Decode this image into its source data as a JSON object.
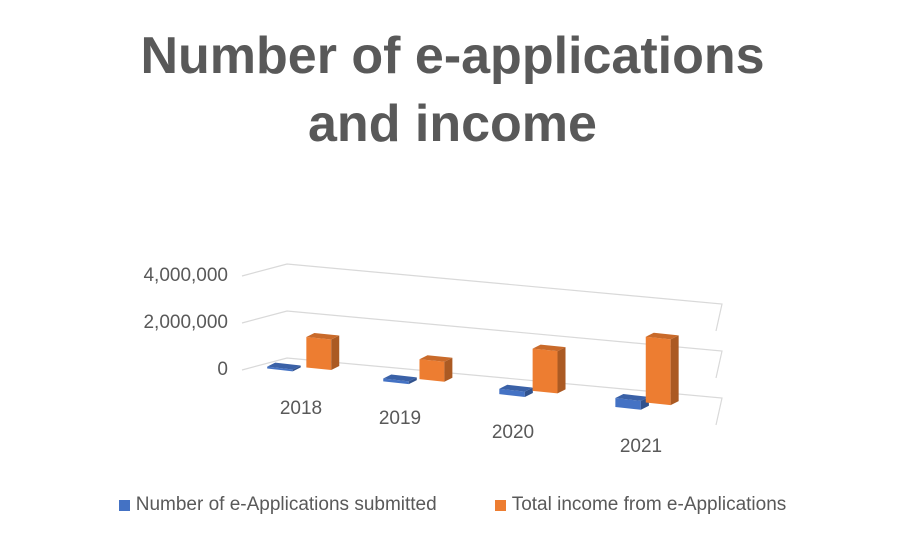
{
  "chart_data": {
    "type": "bar",
    "title_lines": [
      "Number of e-applications",
      "and income"
    ],
    "categories": [
      "2018",
      "2019",
      "2020",
      "2021"
    ],
    "series": [
      {
        "name": "Number of e-Applications submitted",
        "values": [
          80000,
          120000,
          230000,
          380000
        ],
        "color": "#4472C4"
      },
      {
        "name": "Total income from e-Applications",
        "values": [
          1300000,
          850000,
          1800000,
          2800000
        ],
        "color": "#ED7D31"
      }
    ],
    "y_ticks": [
      "0",
      "2,000,000",
      "4,000,000"
    ],
    "ylim": [
      0,
      4000000
    ],
    "grid": true,
    "legend_position": "bottom",
    "projection": "3d-perspective"
  }
}
